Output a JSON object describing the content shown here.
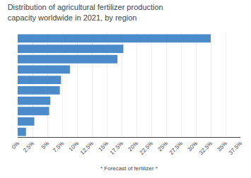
{
  "chart_data": {
    "type": "bar",
    "orientation": "horizontal",
    "title": "Distribution of agricultural fertilizer production capacity worldwide in 2021, by region",
    "categories": [
      null,
      null,
      null,
      null,
      null,
      null,
      null,
      null,
      null,
      null
    ],
    "values": [
      32.5,
      17.8,
      16.8,
      8.8,
      7.3,
      7.1,
      5.5,
      5.3,
      2.8,
      1.4
    ],
    "color": "#4c8bc9",
    "xlim": [
      0,
      37.5
    ],
    "xticks": [
      {
        "value": 0,
        "label": "0%"
      },
      {
        "value": 2.5,
        "label": "2.5%"
      },
      {
        "value": 5,
        "label": "5%"
      },
      {
        "value": 7.5,
        "label": "7.5%"
      },
      {
        "value": 10,
        "label": "10%"
      },
      {
        "value": 12.5,
        "label": "12.5%"
      },
      {
        "value": 15,
        "label": "15%"
      },
      {
        "value": 17.5,
        "label": "17.5%"
      },
      {
        "value": 20,
        "label": "20%"
      },
      {
        "value": 22.5,
        "label": "22.5%"
      },
      {
        "value": 25,
        "label": "25%"
      },
      {
        "value": 27.5,
        "label": "27.5%"
      },
      {
        "value": 30,
        "label": "30%"
      },
      {
        "value": 32.5,
        "label": "32.5%"
      },
      {
        "value": 35,
        "label": "35%"
      },
      {
        "value": 37.5,
        "label": "37.5%"
      }
    ],
    "grid": true,
    "tick_labels": "x",
    "annotations": [
      "* Forecast of fertilizer *"
    ]
  }
}
